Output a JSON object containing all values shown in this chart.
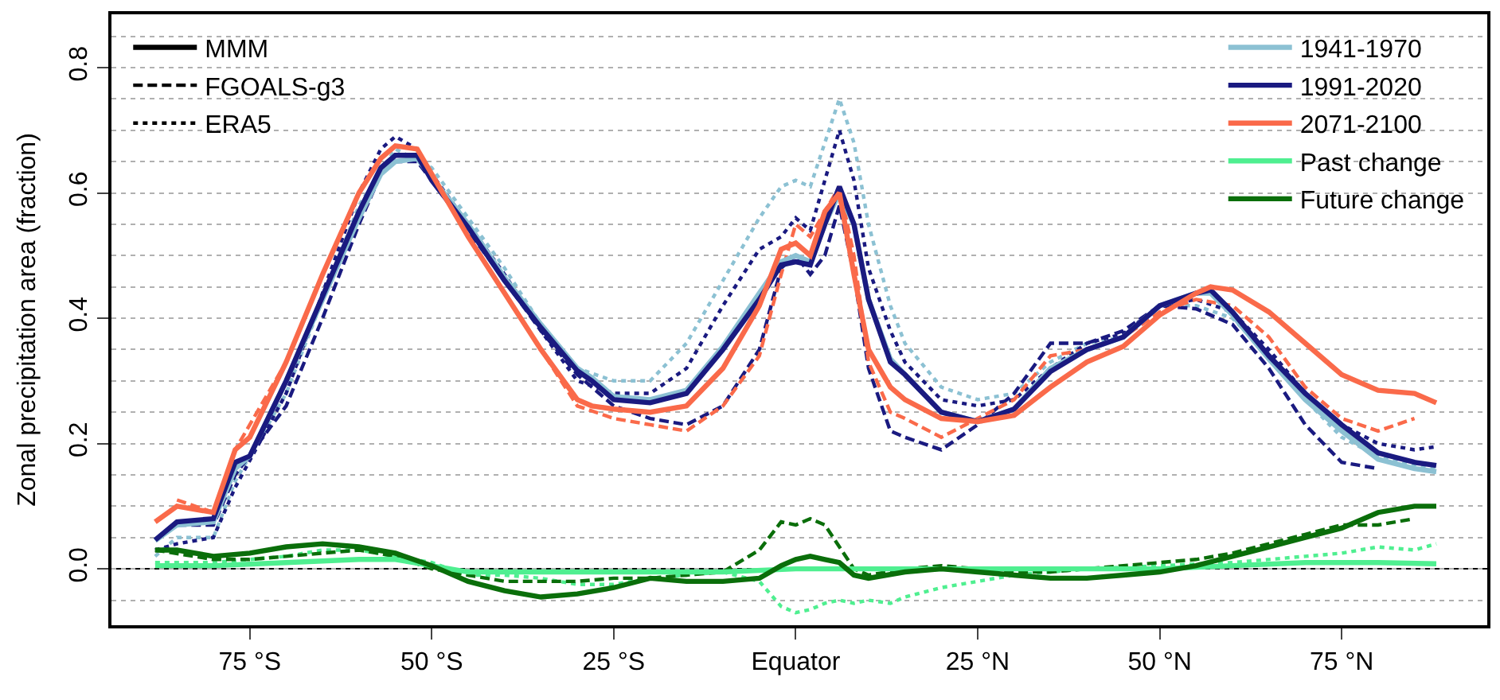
{
  "chart_data": {
    "type": "line",
    "ylabel": "Zonal precipitation area (fraction)",
    "xlim": [
      -94,
      95
    ],
    "ylim": [
      -0.09,
      0.885
    ],
    "xticks": [
      {
        "value": -75,
        "label": "75 °S"
      },
      {
        "value": -50,
        "label": "50 °S"
      },
      {
        "value": -25,
        "label": "25 °S"
      },
      {
        "value": 0,
        "label": "Equator"
      },
      {
        "value": 25,
        "label": "25 °N"
      },
      {
        "value": 50,
        "label": "50 °N"
      },
      {
        "value": 75,
        "label": "75 °N"
      }
    ],
    "yticks": [
      {
        "value": 0,
        "label": "0.0"
      },
      {
        "value": 0.2,
        "label": "0.2"
      },
      {
        "value": 0.4,
        "label": "0.4"
      },
      {
        "value": 0.6,
        "label": "0.6"
      },
      {
        "value": 0.8,
        "label": "0.8"
      },
      {
        "value": -0.05,
        "label": null
      },
      {
        "value": 0.05,
        "label": null
      },
      {
        "value": 0.1,
        "label": null
      },
      {
        "value": 0.15,
        "label": null
      },
      {
        "value": 0.25,
        "label": null
      },
      {
        "value": 0.3,
        "label": null
      },
      {
        "value": 0.35,
        "label": null
      },
      {
        "value": 0.45,
        "label": null
      },
      {
        "value": 0.5,
        "label": null
      },
      {
        "value": 0.55,
        "label": null
      },
      {
        "value": 0.65,
        "label": null
      },
      {
        "value": 0.7,
        "label": null
      },
      {
        "value": 0.75,
        "label": null
      },
      {
        "value": 0.85,
        "label": null
      }
    ],
    "grid": "y",
    "legend": "top right",
    "ref_lines": [
      {
        "axis": "y",
        "value": 0,
        "color": "#000000",
        "line_style": "solid"
      }
    ],
    "series": [
      {
        "name": "MMM",
        "color": "#000000",
        "line_style": "solid"
      },
      {
        "name": "FGOALS-g3",
        "color": "#000000",
        "line_style": "dashed"
      },
      {
        "name": "ERA5",
        "color": "#000000",
        "line_style": "dotted"
      },
      {
        "color": "#8cc1d3",
        "line_style": "dotted",
        "x": [
          -88,
          -85,
          -80,
          -77,
          -70,
          -65,
          -60,
          -55,
          -50,
          -45,
          -40,
          -35,
          -30,
          -25,
          -20,
          -15,
          -10,
          -5,
          -2,
          0,
          2,
          4,
          6,
          8,
          10,
          13,
          15,
          20,
          25,
          30,
          35,
          40,
          45,
          50,
          55,
          60,
          65,
          70,
          75,
          80,
          85,
          88
        ],
        "values": [
          0.02,
          0.05,
          0.05,
          0.14,
          0.28,
          0.43,
          0.58,
          0.67,
          0.64,
          0.56,
          0.48,
          0.39,
          0.32,
          0.3,
          0.3,
          0.36,
          0.46,
          0.56,
          0.61,
          0.62,
          0.61,
          0.68,
          0.75,
          0.68,
          0.55,
          0.42,
          0.36,
          0.29,
          0.27,
          0.28,
          0.33,
          0.36,
          0.37,
          0.42,
          0.42,
          0.4,
          0.34,
          0.27,
          0.21,
          0.18,
          0.165,
          0.16
        ]
      },
      {
        "color": "#1a1a80",
        "line_style": "dotted",
        "x": [
          -88,
          -85,
          -80,
          -77,
          -70,
          -65,
          -60,
          -57,
          -55,
          -52,
          -50,
          -45,
          -40,
          -35,
          -30,
          -25,
          -20,
          -15,
          -10,
          -5,
          -2,
          0,
          2,
          4,
          6,
          8,
          10,
          13,
          15,
          20,
          25,
          30,
          35,
          40,
          45,
          50,
          55,
          60,
          65,
          70,
          75,
          80,
          85,
          88
        ],
        "values": [
          0.03,
          0.04,
          0.05,
          0.13,
          0.28,
          0.44,
          0.6,
          0.67,
          0.69,
          0.67,
          0.63,
          0.55,
          0.47,
          0.38,
          0.3,
          0.28,
          0.28,
          0.32,
          0.42,
          0.51,
          0.53,
          0.56,
          0.54,
          0.62,
          0.7,
          0.62,
          0.48,
          0.38,
          0.33,
          0.27,
          0.26,
          0.27,
          0.32,
          0.36,
          0.375,
          0.42,
          0.43,
          0.41,
          0.35,
          0.28,
          0.23,
          0.2,
          0.19,
          0.195
        ]
      },
      {
        "color": "#1a1a80",
        "line_style": "dashed",
        "x": [
          -85,
          -80,
          -77,
          -70,
          -65,
          -60,
          -57,
          -55,
          -52,
          -50,
          -45,
          -40,
          -35,
          -30,
          -25,
          -20,
          -15,
          -10,
          -5,
          -2,
          0,
          2,
          4,
          6,
          8,
          10,
          13,
          15,
          20,
          25,
          30,
          35,
          40,
          45,
          50,
          55,
          60,
          65,
          70,
          75,
          80
        ],
        "values": [
          0.07,
          0.07,
          0.15,
          0.26,
          0.4,
          0.55,
          0.63,
          0.65,
          0.65,
          0.62,
          0.54,
          0.46,
          0.38,
          0.31,
          0.26,
          0.24,
          0.23,
          0.26,
          0.35,
          0.48,
          0.5,
          0.47,
          0.5,
          0.58,
          0.47,
          0.32,
          0.22,
          0.21,
          0.19,
          0.23,
          0.28,
          0.36,
          0.36,
          0.38,
          0.42,
          0.415,
          0.39,
          0.32,
          0.23,
          0.17,
          0.16
        ]
      },
      {
        "color": "#fa6a4a",
        "line_style": "dashed",
        "x": [
          -85,
          -80,
          -77,
          -70,
          -65,
          -60,
          -57,
          -55,
          -52,
          -50,
          -45,
          -40,
          -35,
          -30,
          -25,
          -20,
          -15,
          -10,
          -5,
          -2,
          0,
          2,
          4,
          6,
          8,
          10,
          13,
          15,
          20,
          25,
          30,
          35,
          40,
          45,
          50,
          55,
          60,
          65,
          70,
          75,
          80,
          85
        ],
        "values": [
          0.11,
          0.09,
          0.19,
          0.33,
          0.47,
          0.6,
          0.655,
          0.675,
          0.67,
          0.63,
          0.53,
          0.44,
          0.35,
          0.26,
          0.24,
          0.23,
          0.22,
          0.26,
          0.34,
          0.47,
          0.55,
          0.53,
          0.57,
          0.61,
          0.5,
          0.33,
          0.25,
          0.24,
          0.21,
          0.24,
          0.27,
          0.34,
          0.35,
          0.37,
          0.41,
          0.43,
          0.42,
          0.37,
          0.29,
          0.24,
          0.22,
          0.24
        ]
      },
      {
        "name": "1941-1970",
        "color": "#8cc1d3",
        "line_style": "solid",
        "x": [
          -88,
          -85,
          -80,
          -77,
          -75,
          -70,
          -65,
          -60,
          -57,
          -55,
          -52,
          -50,
          -45,
          -40,
          -35,
          -30,
          -28,
          -25,
          -20,
          -15,
          -10,
          -5,
          -2,
          0,
          2,
          4,
          6,
          8,
          10,
          13,
          15,
          20,
          25,
          30,
          35,
          40,
          45,
          50,
          55,
          57,
          60,
          65,
          70,
          75,
          80,
          85,
          88
        ],
        "values": [
          0.045,
          0.07,
          0.075,
          0.16,
          0.18,
          0.3,
          0.43,
          0.56,
          0.63,
          0.65,
          0.655,
          0.625,
          0.55,
          0.465,
          0.39,
          0.32,
          0.305,
          0.275,
          0.27,
          0.285,
          0.355,
          0.44,
          0.49,
          0.5,
          0.49,
          0.55,
          0.6,
          0.55,
          0.43,
          0.335,
          0.31,
          0.25,
          0.235,
          0.255,
          0.32,
          0.35,
          0.37,
          0.42,
          0.44,
          0.44,
          0.405,
          0.335,
          0.27,
          0.22,
          0.175,
          0.16,
          0.155
        ]
      },
      {
        "name": "1991-2020",
        "color": "#1a1a80",
        "line_style": "solid",
        "x": [
          -88,
          -85,
          -80,
          -77,
          -75,
          -70,
          -65,
          -60,
          -57,
          -55,
          -52,
          -50,
          -45,
          -40,
          -35,
          -30,
          -28,
          -25,
          -20,
          -15,
          -10,
          -5,
          -2,
          0,
          2,
          4,
          6,
          8,
          10,
          13,
          15,
          20,
          25,
          30,
          35,
          40,
          45,
          50,
          55,
          57,
          60,
          65,
          70,
          75,
          80,
          85,
          88
        ],
        "values": [
          0.046,
          0.075,
          0.08,
          0.17,
          0.18,
          0.3,
          0.435,
          0.57,
          0.64,
          0.66,
          0.66,
          0.62,
          0.545,
          0.46,
          0.385,
          0.316,
          0.3,
          0.27,
          0.265,
          0.28,
          0.35,
          0.43,
          0.485,
          0.49,
          0.485,
          0.55,
          0.61,
          0.55,
          0.43,
          0.33,
          0.31,
          0.25,
          0.235,
          0.255,
          0.315,
          0.35,
          0.37,
          0.42,
          0.44,
          0.445,
          0.41,
          0.34,
          0.28,
          0.23,
          0.185,
          0.17,
          0.165
        ]
      },
      {
        "name": "2071-2100",
        "color": "#fa6a4a",
        "line_style": "solid",
        "x": [
          -88,
          -85,
          -80,
          -77,
          -75,
          -70,
          -65,
          -60,
          -57,
          -55,
          -52,
          -50,
          -45,
          -40,
          -35,
          -30,
          -28,
          -25,
          -20,
          -15,
          -10,
          -5,
          -2,
          0,
          2,
          4,
          6,
          8,
          10,
          13,
          15,
          20,
          25,
          30,
          35,
          40,
          45,
          50,
          55,
          57,
          60,
          65,
          70,
          75,
          80,
          85,
          88
        ],
        "values": [
          0.075,
          0.1,
          0.09,
          0.19,
          0.21,
          0.33,
          0.47,
          0.6,
          0.655,
          0.675,
          0.67,
          0.63,
          0.53,
          0.44,
          0.35,
          0.27,
          0.26,
          0.255,
          0.25,
          0.26,
          0.32,
          0.42,
          0.51,
          0.52,
          0.5,
          0.57,
          0.6,
          0.47,
          0.35,
          0.29,
          0.27,
          0.24,
          0.235,
          0.245,
          0.29,
          0.33,
          0.355,
          0.405,
          0.44,
          0.45,
          0.445,
          0.41,
          0.36,
          0.31,
          0.285,
          0.28,
          0.265
        ]
      },
      {
        "color": "#4fef90",
        "line_style": "dotted",
        "x": [
          -88,
          -80,
          -70,
          -65,
          -60,
          -55,
          -50,
          -45,
          -40,
          -35,
          -30,
          -25,
          -20,
          -15,
          -10,
          -5,
          -2,
          0,
          2,
          4,
          6,
          8,
          10,
          13,
          15,
          20,
          25,
          30,
          35,
          40,
          50,
          60,
          70,
          75,
          80,
          85,
          88
        ],
        "values": [
          0.01,
          0.01,
          0.02,
          0.03,
          0.03,
          0.02,
          0.01,
          -0.01,
          -0.01,
          -0.015,
          -0.025,
          -0.025,
          -0.015,
          -0.01,
          -0.005,
          -0.02,
          -0.06,
          -0.07,
          -0.065,
          -0.055,
          -0.05,
          -0.055,
          -0.05,
          -0.055,
          -0.045,
          -0.03,
          -0.02,
          -0.01,
          -0.005,
          0.0,
          0.005,
          0.01,
          0.02,
          0.025,
          0.035,
          0.03,
          0.04
        ]
      },
      {
        "color": "#0a6e0a",
        "line_style": "dashed",
        "x": [
          -88,
          -80,
          -75,
          -70,
          -65,
          -60,
          -55,
          -50,
          -45,
          -40,
          -35,
          -30,
          -25,
          -20,
          -15,
          -10,
          -5,
          -2,
          0,
          2,
          4,
          6,
          8,
          10,
          15,
          20,
          25,
          30,
          35,
          40,
          45,
          50,
          55,
          60,
          65,
          70,
          75,
          80,
          85
        ],
        "values": [
          0.03,
          0.015,
          0.015,
          0.02,
          0.025,
          0.03,
          0.02,
          0.0,
          -0.01,
          -0.02,
          -0.02,
          -0.02,
          -0.015,
          -0.015,
          -0.01,
          -0.005,
          0.03,
          0.075,
          0.07,
          0.08,
          0.07,
          0.035,
          0.0,
          -0.01,
          0.0,
          0.005,
          0.0,
          -0.005,
          -0.005,
          0.0,
          0.005,
          0.01,
          0.015,
          0.025,
          0.04,
          0.055,
          0.07,
          0.07,
          0.08
        ]
      },
      {
        "name": "Past change",
        "color": "#4fef90",
        "line_style": "solid",
        "x": [
          -88,
          -80,
          -70,
          -60,
          -55,
          -50,
          -45,
          -40,
          -30,
          -20,
          -10,
          0,
          10,
          20,
          30,
          40,
          50,
          60,
          70,
          80,
          88
        ],
        "values": [
          0.005,
          0.005,
          0.01,
          0.015,
          0.015,
          0.005,
          -0.005,
          -0.005,
          -0.005,
          -0.005,
          -0.005,
          0.0,
          0.0,
          0.0,
          0.0,
          0.0,
          0.0,
          0.005,
          0.01,
          0.01,
          0.008
        ]
      },
      {
        "name": "Future change",
        "color": "#0a6e0a",
        "line_style": "solid",
        "x": [
          -88,
          -85,
          -80,
          -75,
          -70,
          -65,
          -60,
          -55,
          -50,
          -45,
          -40,
          -35,
          -30,
          -25,
          -20,
          -15,
          -10,
          -5,
          -2,
          0,
          2,
          4,
          6,
          8,
          10,
          15,
          20,
          25,
          30,
          35,
          40,
          45,
          50,
          55,
          60,
          65,
          70,
          75,
          80,
          85,
          88
        ],
        "values": [
          0.03,
          0.03,
          0.02,
          0.025,
          0.035,
          0.04,
          0.035,
          0.025,
          0.005,
          -0.02,
          -0.035,
          -0.045,
          -0.04,
          -0.03,
          -0.015,
          -0.02,
          -0.02,
          -0.015,
          0.005,
          0.015,
          0.02,
          0.015,
          0.01,
          -0.01,
          -0.015,
          -0.005,
          0.0,
          -0.005,
          -0.01,
          -0.015,
          -0.015,
          -0.01,
          -0.005,
          0.005,
          0.02,
          0.035,
          0.05,
          0.065,
          0.09,
          0.1,
          0.1
        ]
      }
    ]
  }
}
